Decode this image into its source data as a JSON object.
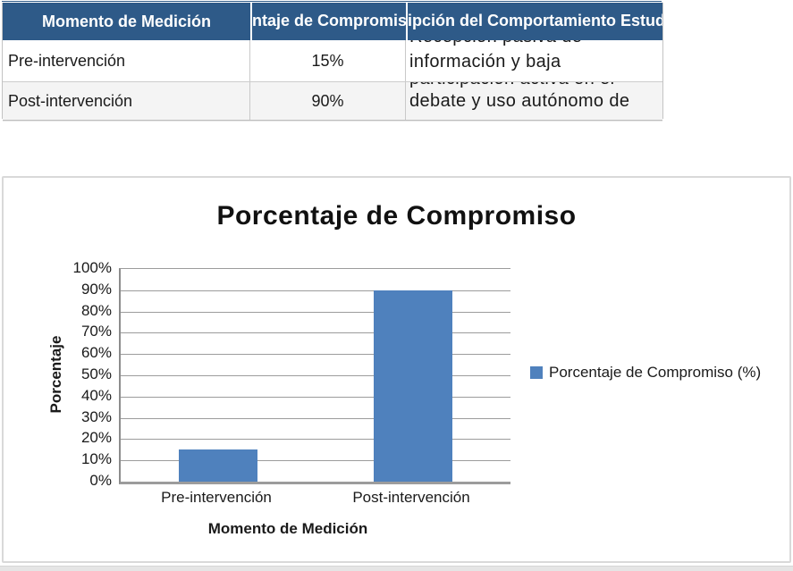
{
  "table": {
    "header_bg": "#2E5A88",
    "header_text_color": "#ffffff",
    "columns": [
      {
        "label": "Momento de Medición"
      },
      {
        "label": "Porcentaje de Compromiso"
      },
      {
        "label": "Descripción del Comportamiento Estudiantil"
      }
    ],
    "rows": [
      {
        "momento": "Pre-intervención",
        "porcentaje": "15%",
        "descripcion_clipped_line": "Recepción pasiva de",
        "descripcion_visible_line": "información y baja"
      },
      {
        "momento": "Post-intervención",
        "porcentaje": "90%",
        "descripcion_clipped_line": "participación activa en el",
        "descripcion_visible_line": "debate y uso autónomo de"
      }
    ]
  },
  "chart_data": {
    "type": "bar",
    "title": "Porcentaje de Compromiso",
    "categories": [
      "Pre-intervención",
      "Post-intervención"
    ],
    "series": [
      {
        "name": "Porcentaje de Compromiso (%)",
        "values": [
          15,
          90
        ]
      }
    ],
    "xlabel": "Momento de Medición",
    "ylabel": "Porcentaje",
    "ylim": [
      0,
      100
    ],
    "ytick_step": 10,
    "ytick_suffix": "%",
    "grid": true,
    "legend_position": "right",
    "bar_color": "#4F81BD",
    "gridline_color": "#9c9c9c"
  }
}
